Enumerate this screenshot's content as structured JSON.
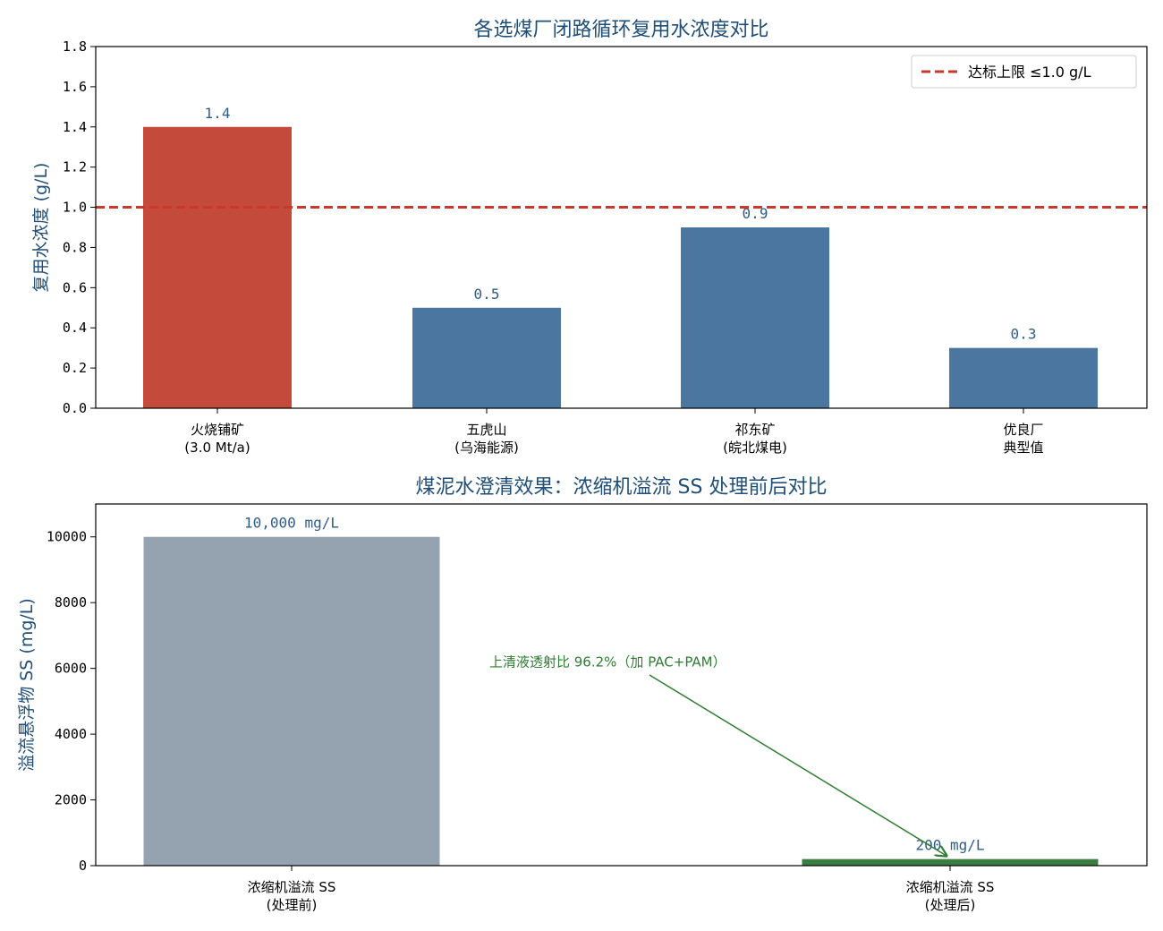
{
  "chart_data": [
    {
      "type": "bar",
      "title": "各选煤厂闭路循环复用水浓度对比",
      "ylabel": "复用水浓度 (g/L)",
      "xlabel": "",
      "ylim": [
        0,
        1.8
      ],
      "yticks": [
        0.0,
        0.2,
        0.4,
        0.6,
        0.8,
        1.0,
        1.2,
        1.4,
        1.6,
        1.8
      ],
      "ytick_labels": [
        "0.0",
        "0.2",
        "0.4",
        "0.6",
        "0.8",
        "1.0",
        "1.2",
        "1.4",
        "1.6",
        "1.8"
      ],
      "categories": [
        [
          "火烧铺矿",
          "(3.0 Mt/a)"
        ],
        [
          "五虎山",
          "(乌海能源)"
        ],
        [
          "祁东矿",
          "(皖北煤电)"
        ],
        [
          "优良厂",
          "典型值"
        ]
      ],
      "values": [
        1.4,
        0.5,
        0.9,
        0.3
      ],
      "data_labels": [
        "1.4",
        "0.5",
        "0.9",
        "0.3"
      ],
      "bar_colors": [
        "#c44a3c",
        "#4a76a0",
        "#4a76a0",
        "#4a76a0"
      ],
      "reference_line": {
        "value": 1.0,
        "label": "达标上限 ≤1.0 g/L",
        "color": "#c9392b",
        "style": "dashed"
      },
      "legend": "top-right",
      "grid": false
    },
    {
      "type": "bar",
      "title": "煤泥水澄清效果：浓缩机溢流 SS 处理前后对比",
      "ylabel": "溢流悬浮物 SS (mg/L)",
      "xlabel": "",
      "ylim": [
        0,
        11000
      ],
      "yticks": [
        0,
        2000,
        4000,
        6000,
        8000,
        10000
      ],
      "ytick_labels": [
        "0",
        "2000",
        "4000",
        "6000",
        "8000",
        "10000"
      ],
      "categories": [
        [
          "浓缩机溢流 SS",
          "(处理前)"
        ],
        [
          "浓缩机溢流 SS",
          "(处理后)"
        ]
      ],
      "values": [
        10000,
        200
      ],
      "data_labels": [
        "10,000 mg/L",
        "200 mg/L"
      ],
      "bar_colors": [
        "#95a3b0",
        "#3b7d40"
      ],
      "annotation": {
        "text": "上清液透射比 96.2%（加 PAC+PAM）",
        "x": 0.4,
        "y": 6000,
        "arrow_to_category": 1,
        "arrow_to_value": 300,
        "color": "#2e7d32"
      },
      "grid": false
    }
  ]
}
